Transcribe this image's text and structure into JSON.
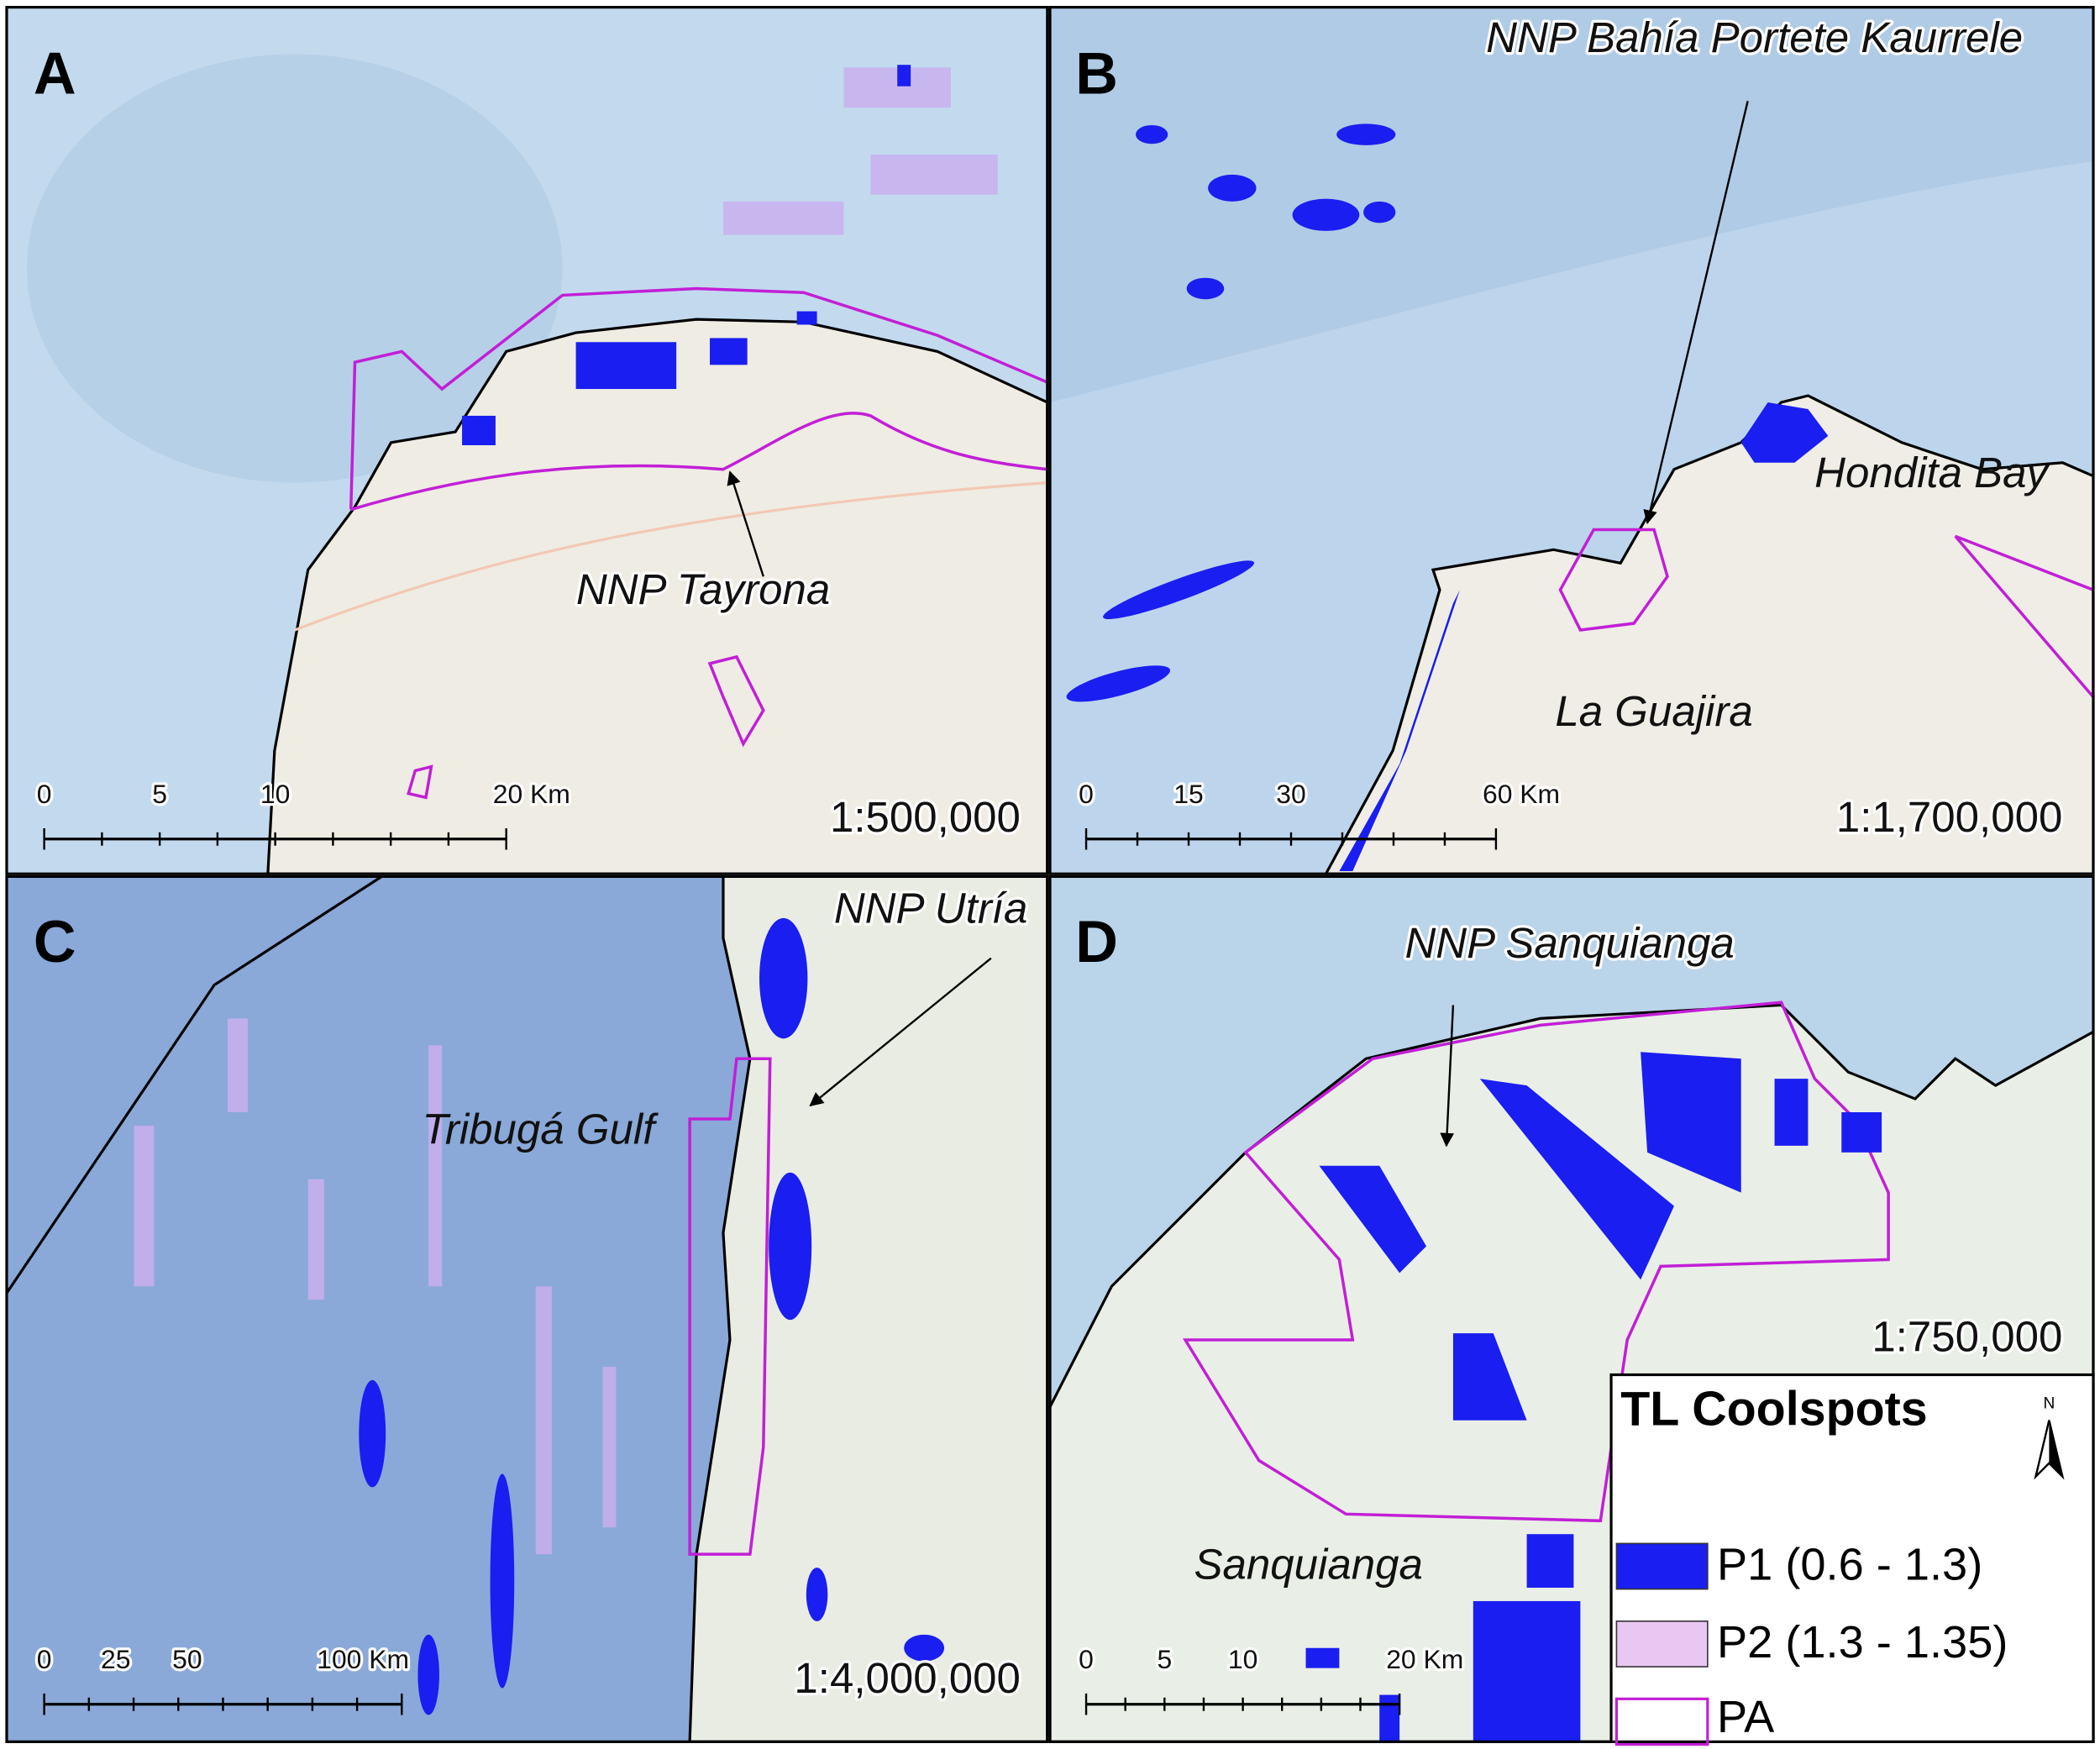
{
  "panels": [
    {
      "letter": "A",
      "labels": [
        "NNP Tayrona"
      ],
      "scale_bar": [
        "0",
        "5",
        "10",
        "20 Km"
      ],
      "scale": "1:500,000"
    },
    {
      "letter": "B",
      "labels": [
        "NNP Bahía Portete Kaurrele",
        "Hondita Bay",
        "La Guajira"
      ],
      "scale_bar": [
        "0",
        "15",
        "30",
        "60 Km"
      ],
      "scale": "1:1,700,000"
    },
    {
      "letter": "C",
      "labels": [
        "NNP Utría",
        "Tribugá Gulf"
      ],
      "scale_bar": [
        "0",
        "25",
        "50",
        "100 Km"
      ],
      "scale": "1:4,000,000"
    },
    {
      "letter": "D",
      "labels": [
        "NNP Sanquianga",
        "Sanquianga"
      ],
      "scale_bar": [
        "0",
        "5",
        "10",
        "20 Km"
      ],
      "scale": "1:750,000"
    }
  ],
  "legend": {
    "title": "TL Coolspots",
    "north": "N",
    "items": [
      "P1 (0.6 - 1.3)",
      "P2 (1.3 - 1.35)",
      "PA"
    ]
  }
}
